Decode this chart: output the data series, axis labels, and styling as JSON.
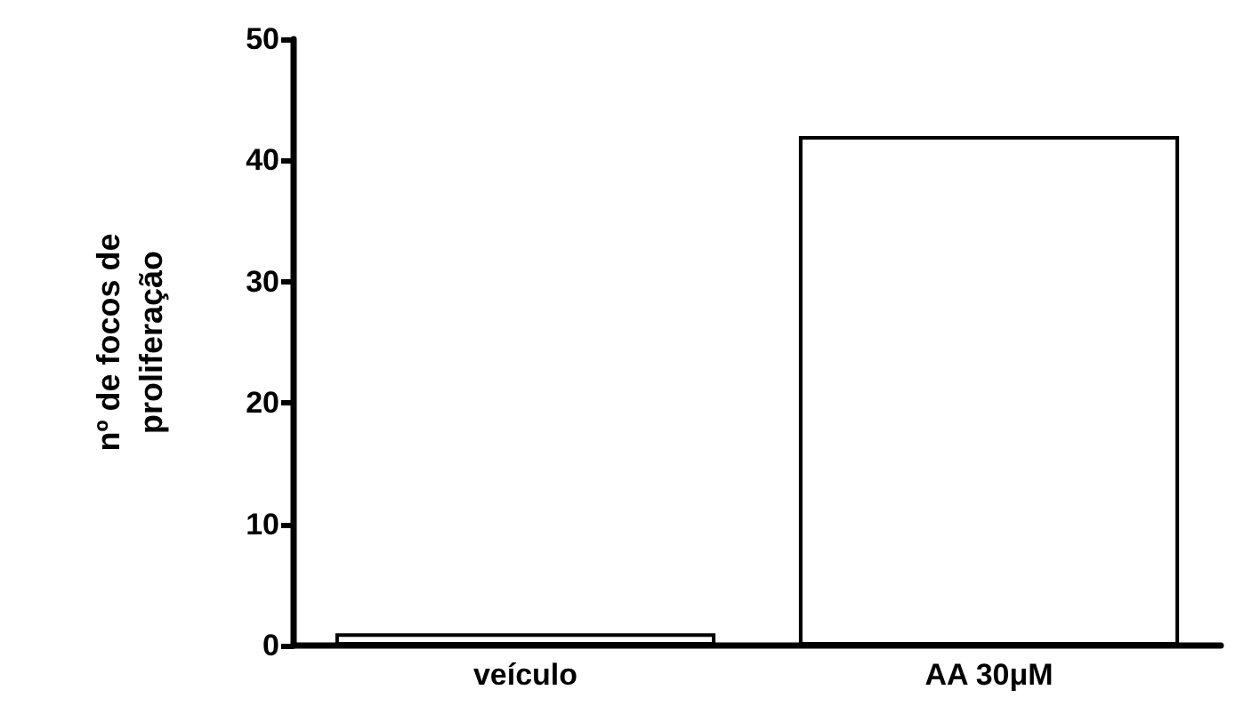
{
  "chart_data": {
    "type": "bar",
    "ylabel": "nº de focos de\nproliferação",
    "categories": [
      "veículo",
      "AA 30μM"
    ],
    "values": [
      1,
      42
    ],
    "color": "#ffffff",
    "ylim": [
      0,
      50
    ],
    "yticks": [
      0,
      10,
      20,
      30,
      40,
      50
    ],
    "grid": false
  }
}
